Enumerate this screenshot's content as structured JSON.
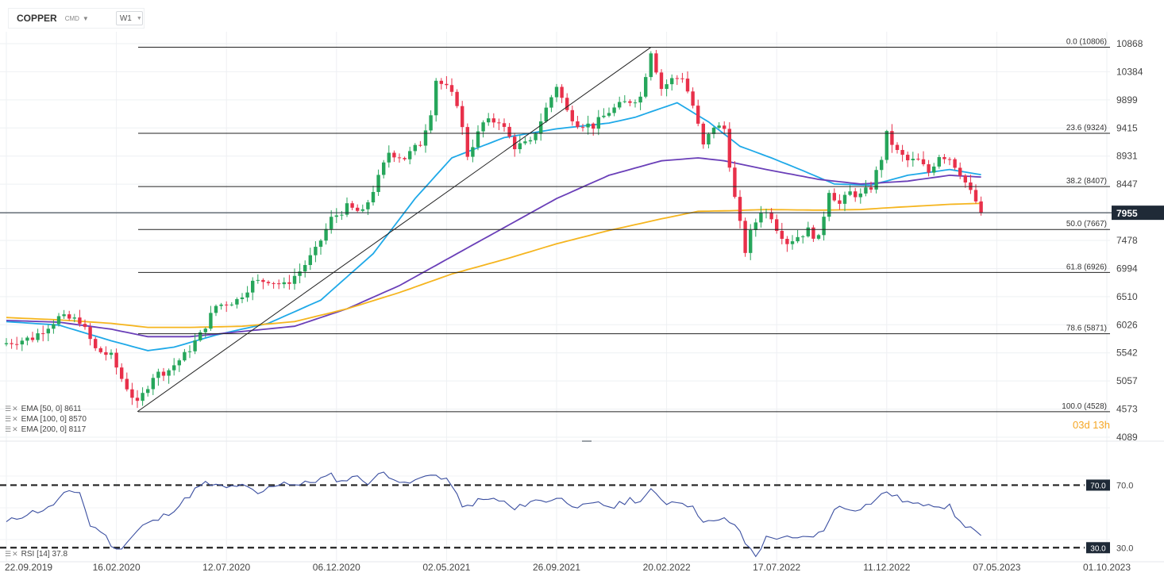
{
  "toolbar": {
    "symbol": "COPPER",
    "market": "CMD",
    "timeframe": "W1"
  },
  "countdown": "03d 13h",
  "colors": {
    "up": "#26a65b",
    "down": "#e8304a",
    "ema50": "#1fa9e8",
    "ema100": "#6a3fb8",
    "ema200": "#f5b51f",
    "rsi": "#3a4ea0",
    "fib": "#222222",
    "price_tag": "#1f2a37"
  },
  "indicators": [
    {
      "name": "EMA [50, 0]",
      "value": "8611"
    },
    {
      "name": "EMA [100, 0]",
      "value": "8570"
    },
    {
      "name": "EMA [200, 0]",
      "value": "8117"
    }
  ],
  "rsi_label": {
    "name": "RSI [14]",
    "value": "37.8"
  },
  "chart_data": {
    "type": "candlestick",
    "price_axis": {
      "ticks": [
        10868,
        10384,
        9899,
        9415,
        8931,
        8447,
        7962,
        7478,
        6994,
        6510,
        6026,
        5542,
        5057,
        4573,
        4089
      ],
      "tick_labels": [
        "10868",
        "10384",
        "9899",
        "9415",
        "8931",
        "8447",
        "",
        "7478",
        "6994",
        "6510",
        "6026",
        "5542",
        "5057",
        "4573",
        "4089"
      ],
      "range": [
        4089,
        10868
      ]
    },
    "current_price": 7955,
    "current_price_label": "7955",
    "x_axis": {
      "labels": [
        "22.09.2019",
        "16.02.2020",
        "12.07.2020",
        "06.12.2020",
        "02.05.2021",
        "26.09.2021",
        "20.02.2022",
        "17.07.2022",
        "11.12.2022",
        "07.05.2023",
        "01.10.2023"
      ],
      "bars_per_label": 21
    },
    "fib_levels": [
      {
        "label": "0.0 (10806)",
        "value": 10806
      },
      {
        "label": "23.6 (9324)",
        "value": 9324
      },
      {
        "label": "38.2 (8407)",
        "value": 8407
      },
      {
        "label": "50.0 (7667)",
        "value": 7667
      },
      {
        "label": "61.8 (6926)",
        "value": 6926
      },
      {
        "label": "78.6 (5871)",
        "value": 5871
      },
      {
        "label": "100.0 (4528)",
        "value": 4528
      }
    ],
    "trendline": {
      "from": {
        "bar": 25,
        "price": 4528
      },
      "to": {
        "bar": 123,
        "price": 10806
      }
    },
    "key_closes": [
      [
        0,
        5710
      ],
      [
        5,
        5800
      ],
      [
        10,
        6150
      ],
      [
        14,
        6100
      ],
      [
        17,
        5600
      ],
      [
        20,
        5480
      ],
      [
        22,
        5100
      ],
      [
        25,
        4650
      ],
      [
        28,
        5150
      ],
      [
        31,
        5250
      ],
      [
        34,
        5500
      ],
      [
        37,
        5850
      ],
      [
        40,
        6350
      ],
      [
        44,
        6450
      ],
      [
        47,
        6750
      ],
      [
        50,
        6800
      ],
      [
        53,
        6700
      ],
      [
        56,
        6950
      ],
      [
        59,
        7300
      ],
      [
        62,
        7850
      ],
      [
        65,
        8050
      ],
      [
        68,
        7950
      ],
      [
        71,
        8550
      ],
      [
        73,
        9000
      ],
      [
        76,
        8900
      ],
      [
        79,
        9150
      ],
      [
        81,
        9700
      ],
      [
        82,
        10250
      ],
      [
        84,
        10100
      ],
      [
        86,
        9850
      ],
      [
        88,
        8950
      ],
      [
        91,
        9500
      ],
      [
        94,
        9550
      ],
      [
        97,
        9100
      ],
      [
        100,
        9150
      ],
      [
        103,
        9750
      ],
      [
        105,
        10150
      ],
      [
        107,
        9700
      ],
      [
        109,
        9500
      ],
      [
        112,
        9450
      ],
      [
        115,
        9700
      ],
      [
        118,
        9850
      ],
      [
        121,
        9950
      ],
      [
        123,
        10750
      ],
      [
        125,
        10100
      ],
      [
        127,
        10250
      ],
      [
        129,
        10300
      ],
      [
        131,
        9800
      ],
      [
        133,
        9100
      ],
      [
        135,
        9450
      ],
      [
        137,
        9400
      ],
      [
        138,
        8800
      ],
      [
        139,
        8200
      ],
      [
        140,
        7750
      ],
      [
        141,
        7300
      ],
      [
        142,
        7600
      ],
      [
        144,
        8000
      ],
      [
        146,
        7900
      ],
      [
        147,
        7700
      ],
      [
        149,
        7450
      ],
      [
        151,
        7550
      ],
      [
        153,
        7650
      ],
      [
        155,
        7500
      ],
      [
        157,
        8350
      ],
      [
        159,
        8100
      ],
      [
        161,
        8300
      ],
      [
        163,
        8250
      ],
      [
        165,
        8400
      ],
      [
        167,
        8900
      ],
      [
        168,
        9300
      ],
      [
        170,
        9000
      ],
      [
        172,
        8850
      ],
      [
        174,
        8850
      ],
      [
        176,
        8650
      ],
      [
        178,
        8950
      ],
      [
        180,
        8900
      ],
      [
        182,
        8650
      ],
      [
        184,
        8300
      ],
      [
        185,
        8150
      ],
      [
        186,
        7955
      ]
    ],
    "ema50": [
      [
        0,
        6080
      ],
      [
        10,
        6020
      ],
      [
        20,
        5750
      ],
      [
        27,
        5580
      ],
      [
        32,
        5640
      ],
      [
        40,
        5850
      ],
      [
        50,
        6050
      ],
      [
        60,
        6450
      ],
      [
        70,
        7250
      ],
      [
        78,
        8200
      ],
      [
        85,
        8900
      ],
      [
        95,
        9250
      ],
      [
        105,
        9400
      ],
      [
        115,
        9500
      ],
      [
        120,
        9600
      ],
      [
        128,
        9850
      ],
      [
        134,
        9520
      ],
      [
        140,
        9100
      ],
      [
        146,
        8900
      ],
      [
        152,
        8680
      ],
      [
        158,
        8450
      ],
      [
        165,
        8430
      ],
      [
        172,
        8600
      ],
      [
        180,
        8700
      ],
      [
        186,
        8611
      ]
    ],
    "ema100": [
      [
        0,
        6100
      ],
      [
        10,
        6070
      ],
      [
        20,
        5950
      ],
      [
        27,
        5820
      ],
      [
        35,
        5820
      ],
      [
        45,
        5910
      ],
      [
        55,
        6000
      ],
      [
        65,
        6300
      ],
      [
        75,
        6700
      ],
      [
        85,
        7200
      ],
      [
        95,
        7700
      ],
      [
        105,
        8200
      ],
      [
        115,
        8600
      ],
      [
        125,
        8850
      ],
      [
        132,
        8900
      ],
      [
        137,
        8850
      ],
      [
        145,
        8700
      ],
      [
        155,
        8530
      ],
      [
        163,
        8450
      ],
      [
        172,
        8500
      ],
      [
        180,
        8600
      ],
      [
        186,
        8570
      ]
    ],
    "ema200": [
      [
        0,
        6150
      ],
      [
        10,
        6110
      ],
      [
        20,
        6050
      ],
      [
        27,
        5980
      ],
      [
        35,
        5980
      ],
      [
        45,
        6000
      ],
      [
        55,
        6080
      ],
      [
        65,
        6300
      ],
      [
        75,
        6580
      ],
      [
        85,
        6900
      ],
      [
        95,
        7150
      ],
      [
        105,
        7420
      ],
      [
        115,
        7650
      ],
      [
        125,
        7850
      ],
      [
        132,
        7980
      ],
      [
        138,
        7990
      ],
      [
        145,
        8010
      ],
      [
        155,
        8000
      ],
      [
        163,
        8010
      ],
      [
        170,
        8050
      ],
      [
        180,
        8100
      ],
      [
        186,
        8117
      ]
    ],
    "rsi": {
      "levels": [
        70,
        30
      ],
      "level_labels": [
        "70.0",
        "30.0"
      ],
      "range": [
        20,
        90
      ],
      "last": 37.8,
      "key_points": [
        [
          0,
          46
        ],
        [
          4,
          52
        ],
        [
          8,
          55
        ],
        [
          11,
          64
        ],
        [
          14,
          66
        ],
        [
          16,
          44
        ],
        [
          18,
          41
        ],
        [
          21,
          28
        ],
        [
          23,
          34
        ],
        [
          26,
          44
        ],
        [
          29,
          48
        ],
        [
          33,
          57
        ],
        [
          36,
          67
        ],
        [
          38,
          71
        ],
        [
          42,
          68
        ],
        [
          44,
          70
        ],
        [
          46,
          68
        ],
        [
          48,
          64
        ],
        [
          51,
          70
        ],
        [
          53,
          72
        ],
        [
          56,
          70
        ],
        [
          59,
          73
        ],
        [
          62,
          76
        ],
        [
          64,
          72
        ],
        [
          66,
          76
        ],
        [
          69,
          72
        ],
        [
          72,
          78
        ],
        [
          74,
          75
        ],
        [
          76,
          70
        ],
        [
          79,
          74
        ],
        [
          81,
          78
        ],
        [
          83,
          74
        ],
        [
          85,
          71
        ],
        [
          87,
          55
        ],
        [
          90,
          60
        ],
        [
          93,
          61
        ],
        [
          95,
          59
        ],
        [
          97,
          54
        ],
        [
          100,
          60
        ],
        [
          103,
          60
        ],
        [
          105,
          62
        ],
        [
          108,
          58
        ],
        [
          110,
          56
        ],
        [
          113,
          58
        ],
        [
          116,
          56
        ],
        [
          119,
          61
        ],
        [
          121,
          60
        ],
        [
          123,
          66
        ],
        [
          126,
          59
        ],
        [
          129,
          60
        ],
        [
          131,
          55
        ],
        [
          133,
          48
        ],
        [
          135,
          46
        ],
        [
          137,
          48
        ],
        [
          139,
          45
        ],
        [
          141,
          33
        ],
        [
          143,
          25
        ],
        [
          145,
          36
        ],
        [
          148,
          37
        ],
        [
          150,
          35
        ],
        [
          152,
          36
        ],
        [
          154,
          38
        ],
        [
          156,
          40
        ],
        [
          158,
          56
        ],
        [
          160,
          55
        ],
        [
          162,
          55
        ],
        [
          164,
          57
        ],
        [
          166,
          61
        ],
        [
          168,
          66
        ],
        [
          170,
          62
        ],
        [
          172,
          59
        ],
        [
          174,
          57
        ],
        [
          176,
          59
        ],
        [
          178,
          57
        ],
        [
          180,
          56
        ],
        [
          182,
          46
        ],
        [
          184,
          43
        ],
        [
          186,
          37.8
        ]
      ]
    }
  }
}
